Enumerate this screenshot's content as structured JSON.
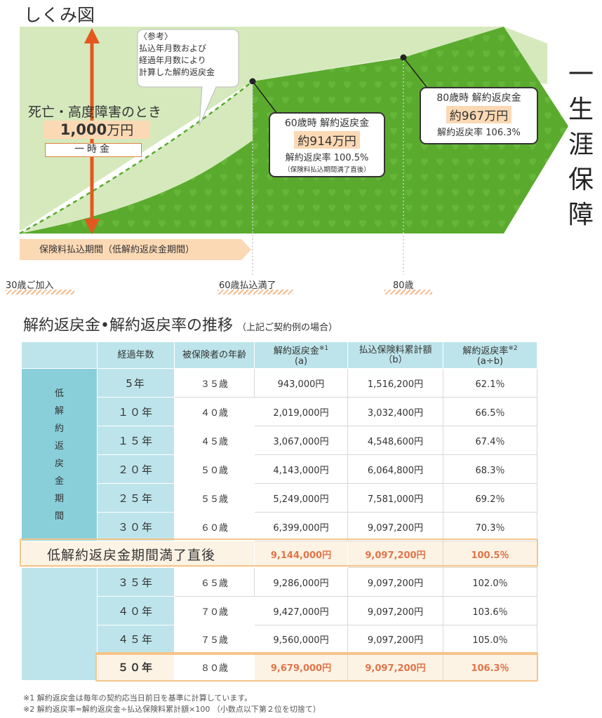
{
  "heading": "しくみ図",
  "diagram": {
    "reference_lines": [
      "〈参考〉",
      "払込年月数および",
      "経過年月数により",
      "計算した解約返戻金"
    ],
    "death_label": "死亡・高度障害のとき",
    "death_amount": "1,000",
    "death_unit": "万円",
    "lump_sum": "一時金",
    "callout_60": {
      "title": "60歳時 解約返戻金",
      "amount": "約914万円",
      "rate": "解約返戻率 100.5%",
      "note": "（保険料払込期間満了直後）"
    },
    "callout_80": {
      "title": "80歳時 解約返戻金",
      "amount": "約967万円",
      "rate": "解約返戻率 106.3%"
    },
    "lifelong": "一生涯保障",
    "period_bar": "保険料払込期間（低解約返戻金期間）",
    "axis": {
      "start": "30歳ご加入",
      "mid": "60歳払込満了",
      "end": "80歳"
    },
    "colors": {
      "green_dark": "#5aaa2e",
      "green_light": "#d6e9bd",
      "arrow": "#e3581f",
      "peach": "#fbd9b4",
      "teal": "#89cfd9"
    }
  },
  "table": {
    "title": "解約返戻金•解約返戻率の推移",
    "subtitle": "（上記ご契約例の場合）",
    "headers": {
      "years": "経過年数",
      "age": "被保険者の年齢",
      "refund": "解約返戻金",
      "refund_note": "※1",
      "refund_sub": "(a)",
      "paid": "払込保険料累計額",
      "paid_sub": "（b）",
      "rate": "解約返戻率",
      "rate_note": "※2",
      "rate_sub": "(a÷b)"
    },
    "side_label": [
      "低",
      "解",
      "約",
      "返",
      "戻",
      "金",
      "期",
      "間"
    ],
    "rows_before": [
      {
        "years": "5年",
        "age": "３５歳",
        "refund": "943,000円",
        "paid": "1,516,200円",
        "rate": "62.1％"
      },
      {
        "years": "１０年",
        "age": "４０歳",
        "refund": "2,019,000円",
        "paid": "3,032,400円",
        "rate": "66.5％"
      },
      {
        "years": "１５年",
        "age": "４５歳",
        "refund": "3,067,000円",
        "paid": "4,548,600円",
        "rate": "67.4％"
      },
      {
        "years": "２０年",
        "age": "５０歳",
        "refund": "4,143,000円",
        "paid": "6,064,800円",
        "rate": "68.3％"
      },
      {
        "years": "２５年",
        "age": "５５歳",
        "refund": "5,249,000円",
        "paid": "7,581,000円",
        "rate": "69.2％"
      },
      {
        "years": "３０年",
        "age": "６０歳",
        "refund": "6,399,000円",
        "paid": "9,097,200円",
        "rate": "70.3％"
      }
    ],
    "highlight": {
      "label": "低解約返戻金期間満了直後",
      "refund": "9,144,000円",
      "paid": "9,097,200円",
      "rate": "100.5％"
    },
    "rows_after": [
      {
        "years": "３５年",
        "age": "６５歳",
        "refund": "9,286,000円",
        "paid": "9,097,200円",
        "rate": "102.0％"
      },
      {
        "years": "４０年",
        "age": "７０歳",
        "refund": "9,427,000円",
        "paid": "9,097,200円",
        "rate": "103.6％"
      },
      {
        "years": "４５年",
        "age": "７５歳",
        "refund": "9,560,000円",
        "paid": "9,097,200円",
        "rate": "105.0％"
      }
    ],
    "final_row": {
      "years": "５０年",
      "age": "８０歳",
      "refund": "9,679,000円",
      "paid": "9,097,200円",
      "rate": "106.3％"
    }
  },
  "footnotes": [
    "※1 解約返戻金は毎年の契約応当日前日を基準に計算しています。",
    "※2 解約返戻率=解約返戻金÷払込保険料累計額×100 （小数点以下第２位を切捨て）"
  ]
}
